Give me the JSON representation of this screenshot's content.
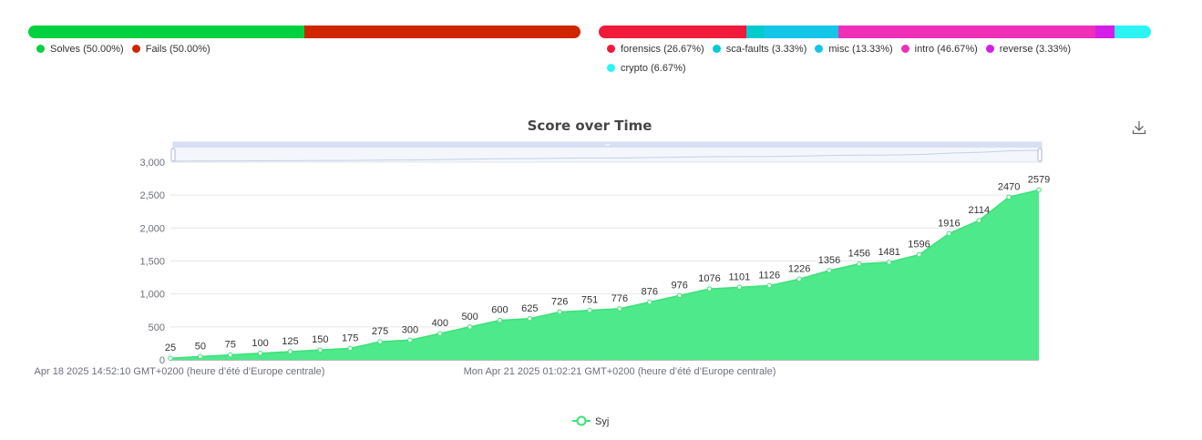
{
  "solves_fails": {
    "segments": [
      {
        "label": "Solves (50.00%)",
        "value": 50.0,
        "color": "#00d13f"
      },
      {
        "label": "Fails (50.00%)",
        "value": 50.0,
        "color": "#cf2600"
      }
    ]
  },
  "categories_breakdown": {
    "segments": [
      {
        "label": "forensics (26.67%)",
        "value": 26.67,
        "color": "#f11a3b"
      },
      {
        "label": "sca-faults (3.33%)",
        "value": 3.33,
        "color": "#00ccd0"
      },
      {
        "label": "misc (13.33%)",
        "value": 13.33,
        "color": "#13c6e8"
      },
      {
        "label": "intro (46.67%)",
        "value": 46.67,
        "color": "#f02fb9"
      },
      {
        "label": "reverse (3.33%)",
        "value": 3.33,
        "color": "#d41ee8"
      },
      {
        "label": "crypto (6.67%)",
        "value": 6.67,
        "color": "#2cf4f4"
      }
    ]
  },
  "chart_data": {
    "type": "area",
    "title": "Score over Time",
    "xlabel": "",
    "ylabel": "",
    "ylim": [
      0,
      3000
    ],
    "y_ticks": [
      "0",
      "500",
      "1,000",
      "1,500",
      "2,000",
      "2,500",
      "3,000"
    ],
    "x_tick_labels": [
      "Apr 18 2025 14:52:10 GMT+0200 (heure d’été d’Europe centrale)",
      "Mon Apr 21 2025 01:02:21 GMT+0200 (heure d’été d’Europe centrale)"
    ],
    "grid": true,
    "legend_position": "bottom",
    "series": [
      {
        "name": "Syj",
        "color": "#3ee07a",
        "fill": "#4ee98a",
        "values": [
          25,
          50,
          75,
          100,
          125,
          150,
          175,
          275,
          300,
          400,
          500,
          600,
          625,
          726,
          751,
          776,
          876,
          976,
          1076,
          1101,
          1126,
          1226,
          1356,
          1456,
          1481,
          1596,
          1916,
          2114,
          2470,
          2579
        ]
      }
    ],
    "data_zoom": true,
    "download_icon": "download-icon"
  }
}
